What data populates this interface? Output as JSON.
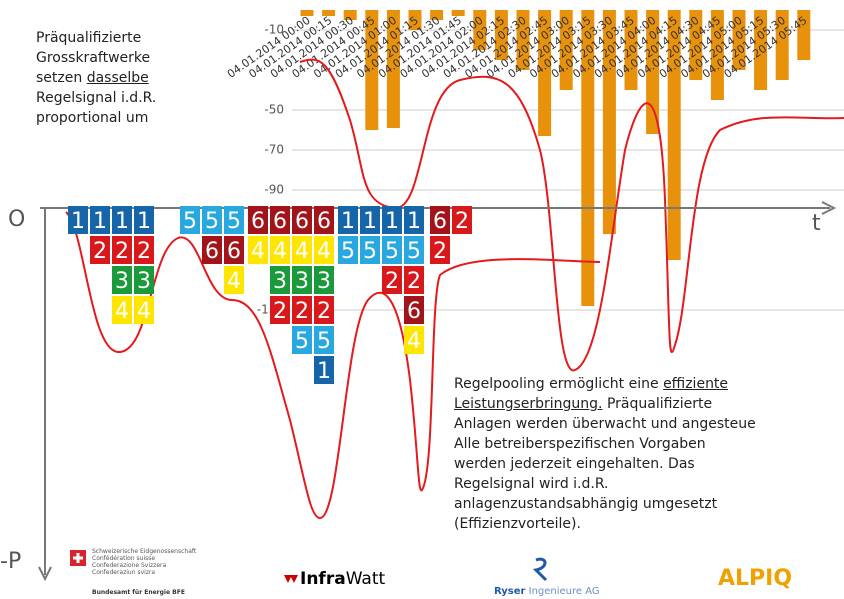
{
  "left_note": {
    "line1": "Präqualifizierte",
    "line2": "Grosskraftwerke",
    "line3a": "setzen",
    "line3b": "dasselbe",
    "line4": "Regelsignal i.d.R.",
    "line5": "proportional um"
  },
  "chart_data": {
    "type": "bar",
    "color": "#e8920c",
    "categories": [
      "04.01.2014 00:00",
      "04.01.2014 00:15",
      "04.01.2014 00:30",
      "04.01.2014 00:45",
      "04.01.2014 01:00",
      "04.01.2014 01:15",
      "04.01.2014 01:30",
      "04.01.2014 01:45",
      "04.01.2014 02:00",
      "04.01.2014 02:15",
      "04.01.2014 02:30",
      "04.01.2014 02:45",
      "04.01.2014 03:00",
      "04.01.2014 03:15",
      "04.01.2014 03:30",
      "04.01.2014 03:45",
      "04.01.2014 04:00",
      "04.01.2014 04:15",
      "04.01.2014 04:30",
      "04.01.2014 04:45",
      "04.01.2014 05:00",
      "04.01.2014 05:15",
      "04.01.2014 05:30",
      "04.01.2014 05:45"
    ],
    "values": [
      -3,
      -3,
      -5,
      -60,
      -59,
      -10,
      -5,
      -3,
      -20,
      -25,
      -30,
      -63,
      -40,
      -148,
      -112,
      -40,
      -62,
      -125,
      -35,
      -45,
      -30,
      -40,
      -35,
      -25
    ],
    "ylim": [
      -155,
      0
    ],
    "yticks": [
      -10,
      -50,
      -70,
      -90,
      -150
    ],
    "grid": true
  },
  "axes": {
    "origin": "O",
    "time": "t",
    "power": "-P"
  },
  "blocks": {
    "columns": [
      [
        1
      ],
      [
        1,
        2
      ],
      [
        1,
        2,
        3,
        4
      ],
      [
        1,
        2,
        3,
        4
      ],
      [
        5
      ],
      [
        5,
        6
      ],
      [
        5,
        6,
        4
      ],
      [
        6,
        4
      ],
      [
        6,
        4,
        3,
        2
      ],
      [
        6,
        4,
        3,
        2,
        5
      ],
      [
        6,
        4,
        3,
        2,
        5,
        1
      ],
      [
        1,
        5
      ],
      [
        1,
        5
      ],
      [
        1,
        5,
        2
      ],
      [
        1,
        5,
        2,
        6,
        4
      ],
      [
        6,
        2
      ],
      [
        2
      ]
    ],
    "colors": {
      "1": "#1565a8",
      "2": "#d7191c",
      "3": "#1a9a3a",
      "4": "#ffe600",
      "5": "#29a8e0",
      "6": "#a3141a"
    }
  },
  "right_note": {
    "p1": "Regelpooling ermöglicht eine",
    "p2": "effiziente",
    "p3": "Leistungserbringung.",
    "p4": "Präqualifizierte",
    "l2": "Anlagen werden überwacht und angesteue",
    "l3": "Alle betreiberspezifischen Vorgaben",
    "l4": "werden jederzeit eingehalten. Das",
    "l5": "Regelsignal wird i.d.R.",
    "l6": "anlagenzustandsabhängig umgesetzt",
    "l7": "(Effizienzvorteile)."
  },
  "logos": {
    "swiss1": "Schweizerische Eidgenossenschaft",
    "swiss2": "Confédération suisse",
    "swiss3": "Confederazione Svizzera",
    "swiss4": "Confederaziun svizra",
    "swiss5": "Bundesamt für Energie BFE",
    "infra1": "Infra",
    "infra2": "Watt",
    "ryser1": "Ryser",
    "ryser2": "Ingenieure AG",
    "alpiq": "ALPIQ"
  }
}
